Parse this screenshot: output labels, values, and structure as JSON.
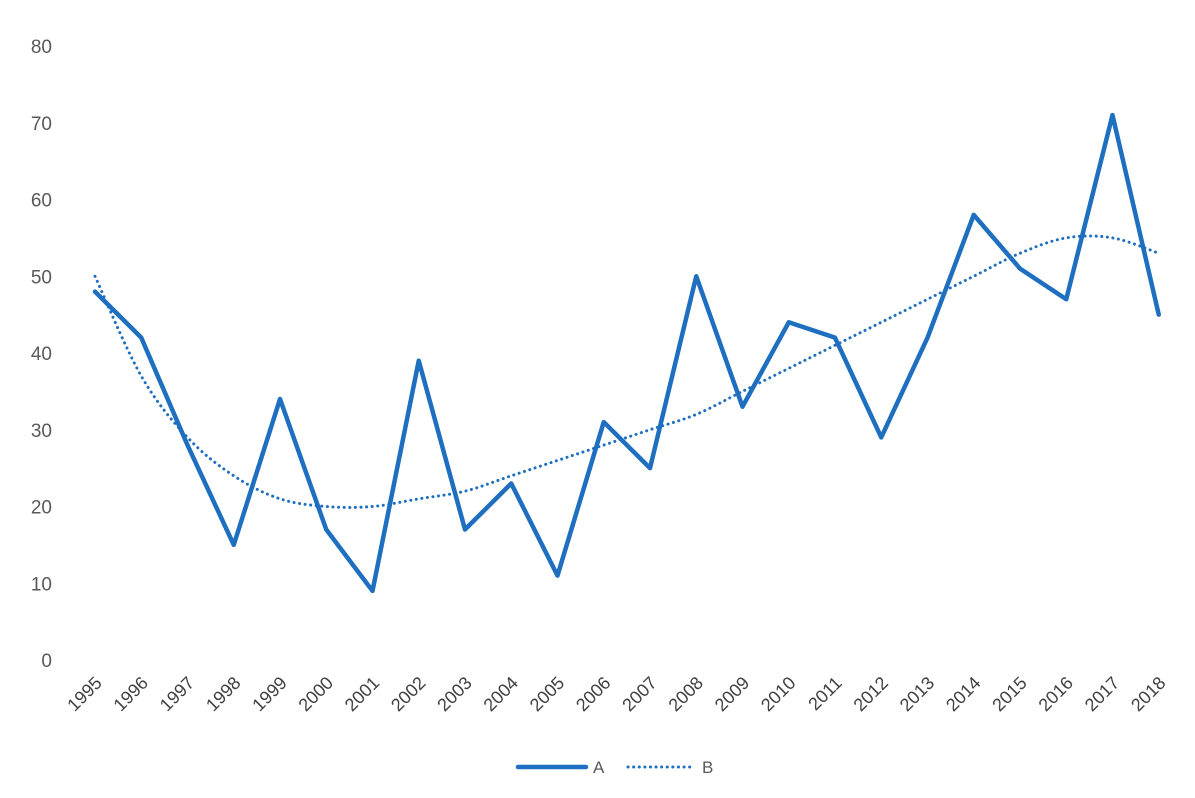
{
  "chart_data": {
    "type": "line",
    "categories": [
      "1995",
      "1996",
      "1997",
      "1998",
      "1999",
      "2000",
      "2001",
      "2002",
      "2003",
      "2004",
      "2005",
      "2006",
      "2007",
      "2008",
      "2009",
      "2010",
      "2011",
      "2012",
      "2013",
      "2014",
      "2015",
      "2016",
      "2017",
      "2018"
    ],
    "yticks": [
      "0",
      "10",
      "20",
      "30",
      "40",
      "50",
      "60",
      "70",
      "80"
    ],
    "ylim": [
      0,
      80
    ],
    "grid": false,
    "legend_position": "bottom",
    "colors": {
      "series": "#1f6fc0",
      "tick_text": "#595959"
    },
    "series": [
      {
        "name": "A",
        "style": "solid",
        "values": [
          48,
          42,
          28,
          15,
          34,
          17,
          9,
          39,
          17,
          23,
          11,
          31,
          25,
          50,
          33,
          44,
          42,
          29,
          42,
          58,
          51,
          47,
          71,
          45
        ]
      },
      {
        "name": "B",
        "style": "dotted",
        "values": [
          50,
          37,
          29,
          24,
          21,
          20,
          20,
          21,
          22,
          24,
          26,
          28,
          30,
          32,
          35,
          38,
          41,
          44,
          47,
          50,
          53,
          55,
          55,
          53
        ]
      }
    ]
  }
}
